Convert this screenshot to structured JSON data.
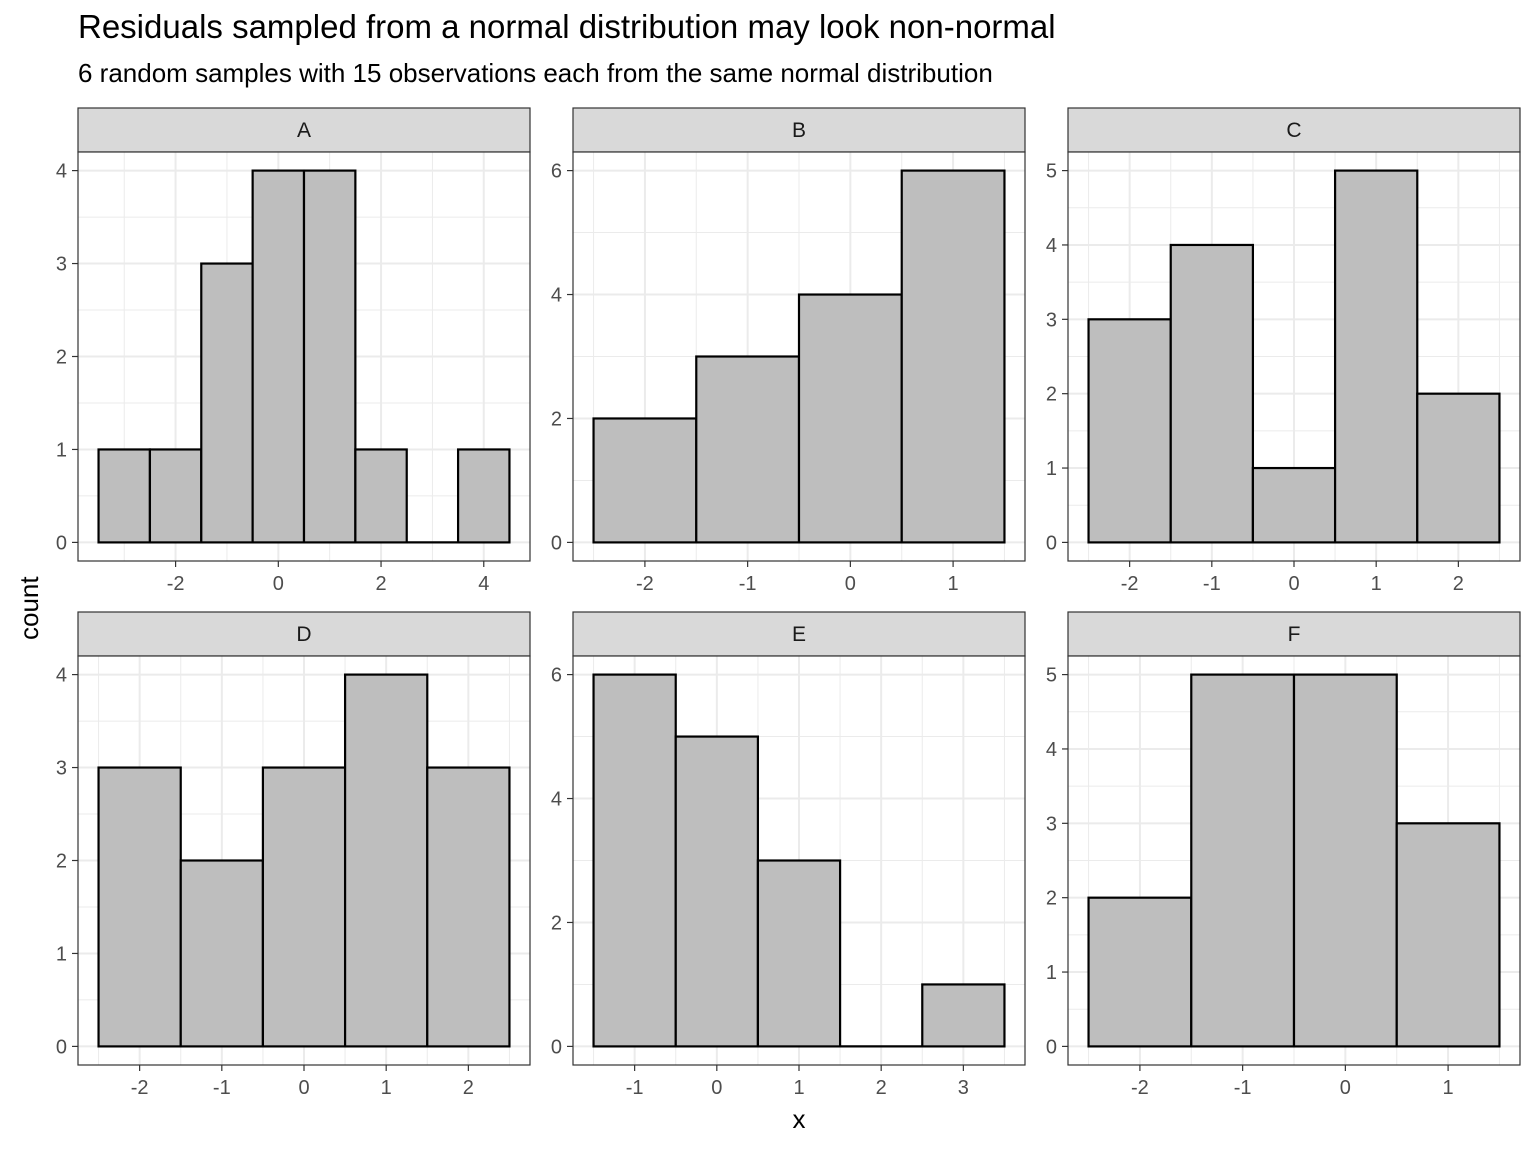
{
  "chart_data": {
    "type": "bar",
    "title": "Residuals sampled from a normal distribution may look non-normal",
    "subtitle": "6 random samples with 15 observations each from the same normal distribution",
    "xlabel": "x",
    "ylabel": "count",
    "grid": true,
    "colors": {
      "bar_fill": "#bebebe",
      "bar_stroke": "#000000",
      "strip_fill": "#d9d9d9",
      "grid": "#ebebeb",
      "panel_border": "#333333"
    },
    "panels": [
      {
        "label": "A",
        "xlim": [
          -3.9,
          4.9
        ],
        "ylim": [
          -0.2,
          4.2
        ],
        "x_ticks": [
          -2,
          0,
          2,
          4
        ],
        "x_tick_labels": [
          "-2",
          "0",
          "2",
          "4"
        ],
        "y_ticks": [
          0,
          1,
          2,
          3,
          4
        ],
        "y_tick_labels": [
          "0",
          "1",
          "2",
          "3",
          "4"
        ],
        "bins": [
          {
            "x0": -3.5,
            "x1": -2.5,
            "count": 1
          },
          {
            "x0": -2.5,
            "x1": -1.5,
            "count": 1
          },
          {
            "x0": -1.5,
            "x1": -0.5,
            "count": 3
          },
          {
            "x0": -0.5,
            "x1": 0.5,
            "count": 4
          },
          {
            "x0": 0.5,
            "x1": 1.5,
            "count": 4
          },
          {
            "x0": 1.5,
            "x1": 2.5,
            "count": 1
          },
          {
            "x0": 2.5,
            "x1": 3.5,
            "count": 0
          },
          {
            "x0": 3.5,
            "x1": 4.5,
            "count": 1
          }
        ]
      },
      {
        "label": "B",
        "xlim": [
          -2.7,
          1.7
        ],
        "ylim": [
          -0.3,
          6.3
        ],
        "x_ticks": [
          -2,
          -1,
          0,
          1
        ],
        "x_tick_labels": [
          "-2",
          "-1",
          "0",
          "1"
        ],
        "y_ticks": [
          0,
          2,
          4,
          6
        ],
        "y_tick_labels": [
          "0",
          "2",
          "4",
          "6"
        ],
        "bins": [
          {
            "x0": -2.5,
            "x1": -1.5,
            "count": 2
          },
          {
            "x0": -1.5,
            "x1": -0.5,
            "count": 3
          },
          {
            "x0": -0.5,
            "x1": 0.5,
            "count": 4
          },
          {
            "x0": 0.5,
            "x1": 1.5,
            "count": 6
          }
        ]
      },
      {
        "label": "C",
        "xlim": [
          -2.75,
          2.75
        ],
        "ylim": [
          -0.25,
          5.25
        ],
        "x_ticks": [
          -2,
          -1,
          0,
          1,
          2
        ],
        "x_tick_labels": [
          "-2",
          "-1",
          "0",
          "1",
          "2"
        ],
        "y_ticks": [
          0,
          1,
          2,
          3,
          4,
          5
        ],
        "y_tick_labels": [
          "0",
          "1",
          "2",
          "3",
          "4",
          "5"
        ],
        "bins": [
          {
            "x0": -2.5,
            "x1": -1.5,
            "count": 3
          },
          {
            "x0": -1.5,
            "x1": -0.5,
            "count": 4
          },
          {
            "x0": -0.5,
            "x1": 0.5,
            "count": 1
          },
          {
            "x0": 0.5,
            "x1": 1.5,
            "count": 5
          },
          {
            "x0": 1.5,
            "x1": 2.5,
            "count": 2
          }
        ]
      },
      {
        "label": "D",
        "xlim": [
          -2.75,
          2.75
        ],
        "ylim": [
          -0.2,
          4.2
        ],
        "x_ticks": [
          -2,
          -1,
          0,
          1,
          2
        ],
        "x_tick_labels": [
          "-2",
          "-1",
          "0",
          "1",
          "2"
        ],
        "y_ticks": [
          0,
          1,
          2,
          3,
          4
        ],
        "y_tick_labels": [
          "0",
          "1",
          "2",
          "3",
          "4"
        ],
        "bins": [
          {
            "x0": -2.5,
            "x1": -1.5,
            "count": 3
          },
          {
            "x0": -1.5,
            "x1": -0.5,
            "count": 2
          },
          {
            "x0": -0.5,
            "x1": 0.5,
            "count": 3
          },
          {
            "x0": 0.5,
            "x1": 1.5,
            "count": 4
          },
          {
            "x0": 1.5,
            "x1": 2.5,
            "count": 3
          }
        ]
      },
      {
        "label": "E",
        "xlim": [
          -1.75,
          3.75
        ],
        "ylim": [
          -0.3,
          6.3
        ],
        "x_ticks": [
          -1,
          0,
          1,
          2,
          3
        ],
        "x_tick_labels": [
          "-1",
          "0",
          "1",
          "2",
          "3"
        ],
        "y_ticks": [
          0,
          2,
          4,
          6
        ],
        "y_tick_labels": [
          "0",
          "2",
          "4",
          "6"
        ],
        "bins": [
          {
            "x0": -1.5,
            "x1": -0.5,
            "count": 6
          },
          {
            "x0": -0.5,
            "x1": 0.5,
            "count": 5
          },
          {
            "x0": 0.5,
            "x1": 1.5,
            "count": 3
          },
          {
            "x0": 1.5,
            "x1": 2.5,
            "count": 0
          },
          {
            "x0": 2.5,
            "x1": 3.5,
            "count": 1
          }
        ]
      },
      {
        "label": "F",
        "xlim": [
          -2.7,
          1.7
        ],
        "ylim": [
          -0.25,
          5.25
        ],
        "x_ticks": [
          -2,
          -1,
          0,
          1
        ],
        "x_tick_labels": [
          "-2",
          "-1",
          "0",
          "1"
        ],
        "y_ticks": [
          0,
          1,
          2,
          3,
          4,
          5
        ],
        "y_tick_labels": [
          "0",
          "1",
          "2",
          "3",
          "4",
          "5"
        ],
        "bins": [
          {
            "x0": -2.5,
            "x1": -1.5,
            "count": 2
          },
          {
            "x0": -1.5,
            "x1": -0.5,
            "count": 5
          },
          {
            "x0": -0.5,
            "x1": 0.5,
            "count": 5
          },
          {
            "x0": 0.5,
            "x1": 1.5,
            "count": 3
          }
        ]
      }
    ]
  }
}
